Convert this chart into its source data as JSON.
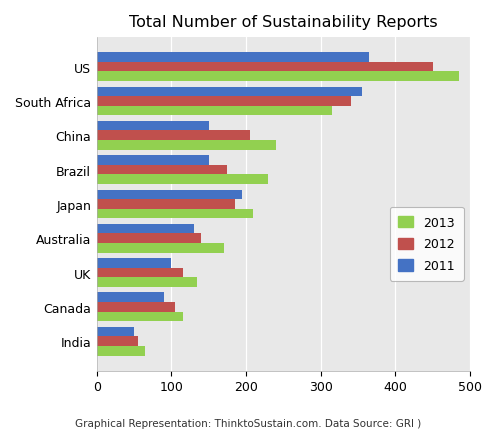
{
  "title": "Total Number of Sustainability Reports",
  "subtitle": "Graphical Representation: ThinktoSustain.com. Data Source: GRI )",
  "categories": [
    "US",
    "South Africa",
    "China",
    "Brazil",
    "Japan",
    "Australia",
    "UK",
    "Canada",
    "India"
  ],
  "series": {
    "2013": [
      485,
      315,
      240,
      230,
      210,
      170,
      135,
      115,
      65
    ],
    "2012": [
      450,
      340,
      205,
      175,
      185,
      140,
      115,
      105,
      55
    ],
    "2011": [
      365,
      355,
      150,
      150,
      195,
      130,
      100,
      90,
      50
    ]
  },
  "colors": {
    "2013": "#92D050",
    "2012": "#C0504D",
    "2011": "#4472C4"
  },
  "xlim": [
    0,
    500
  ],
  "xticks": [
    0,
    100,
    200,
    300,
    400,
    500
  ],
  "bar_height": 0.28,
  "background_color": "#FFFFFF",
  "plot_bg_color": "#E8E8E8",
  "grid_color": "#FFFFFF",
  "figsize": [
    4.97,
    4.31
  ],
  "dpi": 100
}
